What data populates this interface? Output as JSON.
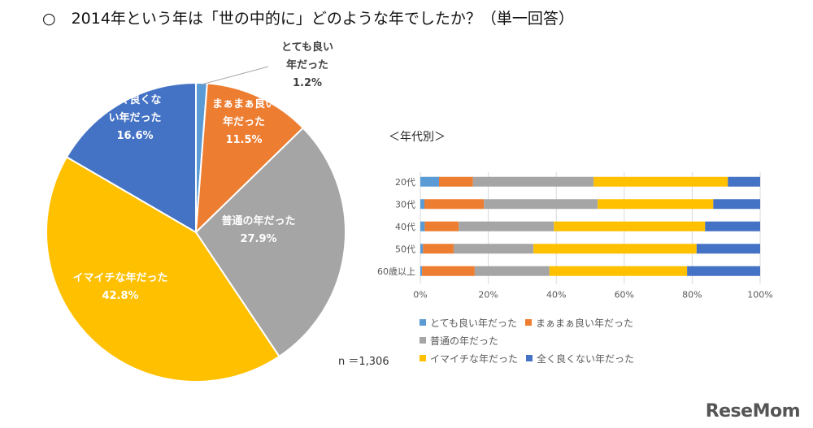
{
  "question": "○　2014年という年は「世の中的に」どのような年でしたか？（単一回答）",
  "n_label": "n ＝1,306",
  "age_title": "＜年代別＞",
  "logo": "ReseMom",
  "colors": {
    "とても良い年だった": "#5b9bd5",
    "まぁまぁ良い年だった": "#ed7d31",
    "普通の年だった": "#a5a5a5",
    "イマイチな年だった": "#ffc000",
    "全く良くない年だった": "#4472c4"
  },
  "chart_data": [
    {
      "type": "pie",
      "title": "",
      "slices": [
        {
          "name": "とても良い年だった",
          "value": 1.2,
          "label_lines": [
            "とても良い",
            "年だった",
            "1.2%"
          ]
        },
        {
          "name": "まぁまぁ良い年だった",
          "value": 11.5,
          "label_lines": [
            "まぁまぁ良い",
            "年だった",
            "11.5%"
          ]
        },
        {
          "name": "普通の年だった",
          "value": 27.9,
          "label_lines": [
            "普通の年だった",
            "27.9%"
          ]
        },
        {
          "name": "イマイチな年だった",
          "value": 42.8,
          "label_lines": [
            "イマイチな年だった",
            "42.8%"
          ]
        },
        {
          "name": "全く良くない年だった",
          "value": 16.6,
          "label_lines": [
            "全く良くな",
            "い年だった",
            "16.6%"
          ]
        }
      ]
    },
    {
      "type": "bar",
      "stacked": true,
      "orientation": "horizontal",
      "title": "＜年代別＞",
      "categories": [
        "20代",
        "30代",
        "40代",
        "50代",
        "60歳以上"
      ],
      "xlim": [
        0,
        100
      ],
      "x_ticks": [
        "0%",
        "20%",
        "40%",
        "60%",
        "80%",
        "100%"
      ],
      "grid": true,
      "legend_position": "bottom",
      "series": [
        {
          "name": "とても良い年だった",
          "values": [
            5.5,
            1.2,
            1.3,
            0.8,
            0.5
          ]
        },
        {
          "name": "まぁまぁ良い年だった",
          "values": [
            10.0,
            17.5,
            10.0,
            9.0,
            15.5
          ]
        },
        {
          "name": "普通の年だった",
          "values": [
            35.5,
            33.5,
            28.0,
            23.5,
            22.0
          ]
        },
        {
          "name": "イマイチな年だった",
          "values": [
            39.5,
            34.0,
            44.5,
            48.0,
            40.5
          ]
        },
        {
          "name": "全く良くない年だった",
          "values": [
            9.5,
            13.8,
            16.2,
            18.7,
            21.5
          ]
        }
      ]
    }
  ]
}
